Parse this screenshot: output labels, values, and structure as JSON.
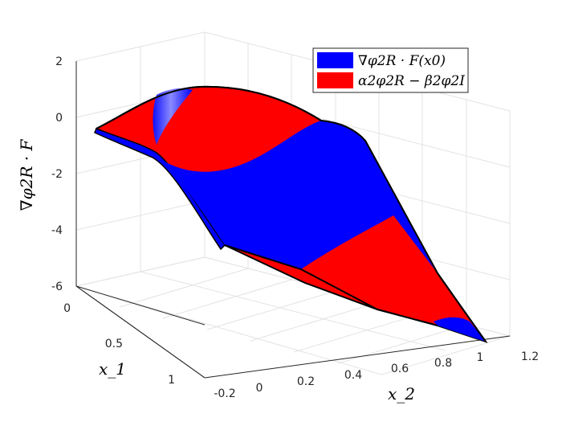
{
  "chart_data": {
    "type": "surface-3d",
    "title": "",
    "xlabel": "x_2",
    "ylabel": "x_1",
    "zlabel": "∇φ2R · F",
    "x_ticks": [
      "-0.2",
      "0",
      "0.2",
      "0.4",
      "0.6",
      "0.8",
      "1",
      "1.2"
    ],
    "y_ticks": [
      "0",
      "0.5",
      "1"
    ],
    "z_ticks": [
      "2",
      "0",
      "-2",
      "-4",
      "-6"
    ],
    "xlim": [
      -0.2,
      1.2
    ],
    "ylim": [
      0,
      1
    ],
    "zlim": [
      -6,
      2
    ],
    "grid": true,
    "legend_position": "top-right",
    "series": [
      {
        "name": "∇φ2R · F(x0)",
        "color": "#0000ff"
      },
      {
        "name": "α2φ2R − β2φ2I",
        "color": "#ff0000"
      }
    ]
  }
}
